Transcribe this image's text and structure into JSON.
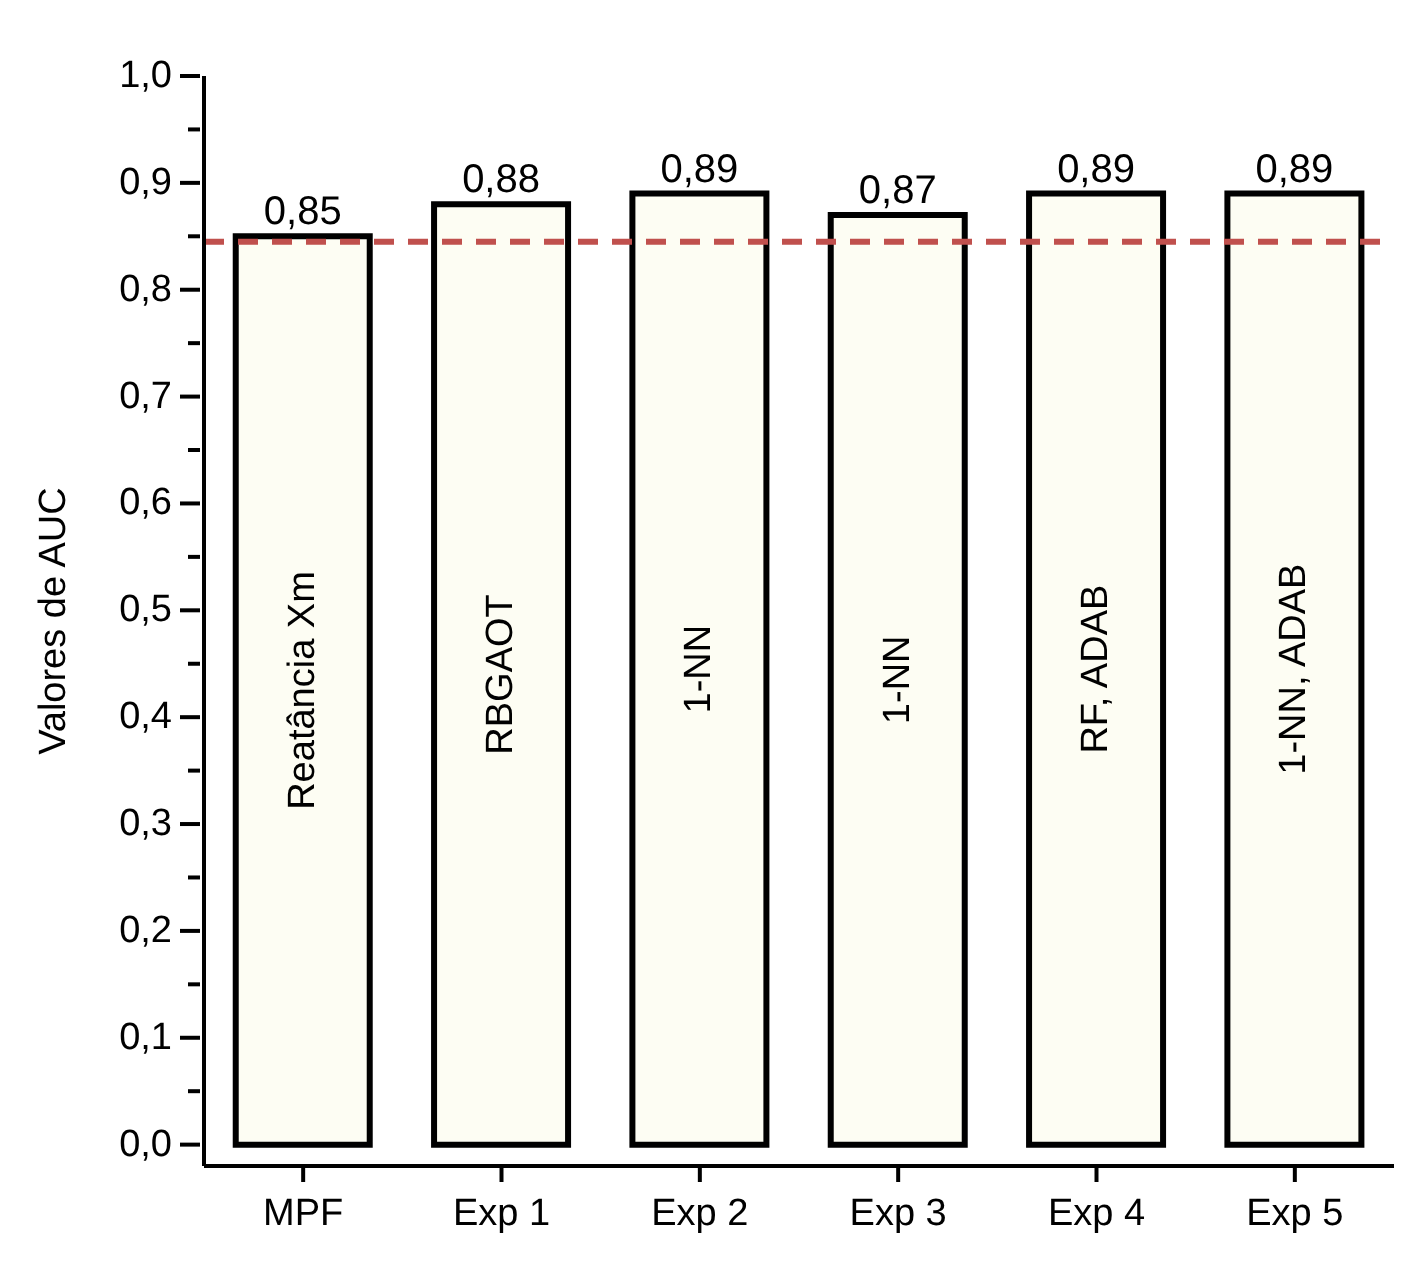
{
  "chart_data": {
    "type": "bar",
    "ylabel": "Valores de AUC",
    "categories": [
      "MPF",
      "Exp 1",
      "Exp 2",
      "Exp 3",
      "Exp 4",
      "Exp 5"
    ],
    "values": [
      0.85,
      0.88,
      0.89,
      0.87,
      0.89,
      0.89
    ],
    "color": "#fdfdf3",
    "value_labels": [
      "0,85",
      "0,88",
      "0,89",
      "0,87",
      "0,89",
      "0,89"
    ],
    "ylim": [
      -0.02,
      1.0
    ],
    "yticks": [
      {
        "value": 0,
        "label": "0,0"
      },
      {
        "value": 0.05,
        "label": null
      },
      {
        "value": 0.1,
        "label": "0,1"
      },
      {
        "value": 0.15,
        "label": null
      },
      {
        "value": 0.2,
        "label": "0,2"
      },
      {
        "value": 0.25,
        "label": null
      },
      {
        "value": 0.3,
        "label": "0,3"
      },
      {
        "value": 0.35,
        "label": null
      },
      {
        "value": 0.4,
        "label": "0,4"
      },
      {
        "value": 0.45,
        "label": null
      },
      {
        "value": 0.5,
        "label": "0,5"
      },
      {
        "value": 0.55,
        "label": null
      },
      {
        "value": 0.6,
        "label": "0,6"
      },
      {
        "value": 0.65,
        "label": null
      },
      {
        "value": 0.7,
        "label": "0,7"
      },
      {
        "value": 0.75,
        "label": null
      },
      {
        "value": 0.8,
        "label": "0,8"
      },
      {
        "value": 0.85,
        "label": null
      },
      {
        "value": 0.9,
        "label": "0,9"
      },
      {
        "value": 0.95,
        "label": null
      },
      {
        "value": 1.0,
        "label": "1,0"
      }
    ],
    "ref_lines": [
      {
        "axis": "y",
        "value": 0.845,
        "color": "#c0504d",
        "line_style": "dashed"
      }
    ],
    "annotations": [
      "Reatância Xm",
      "RBGAOT",
      "1-NN",
      "1-NN",
      "RF, ADAB",
      "1-NN, ADAB"
    ]
  }
}
